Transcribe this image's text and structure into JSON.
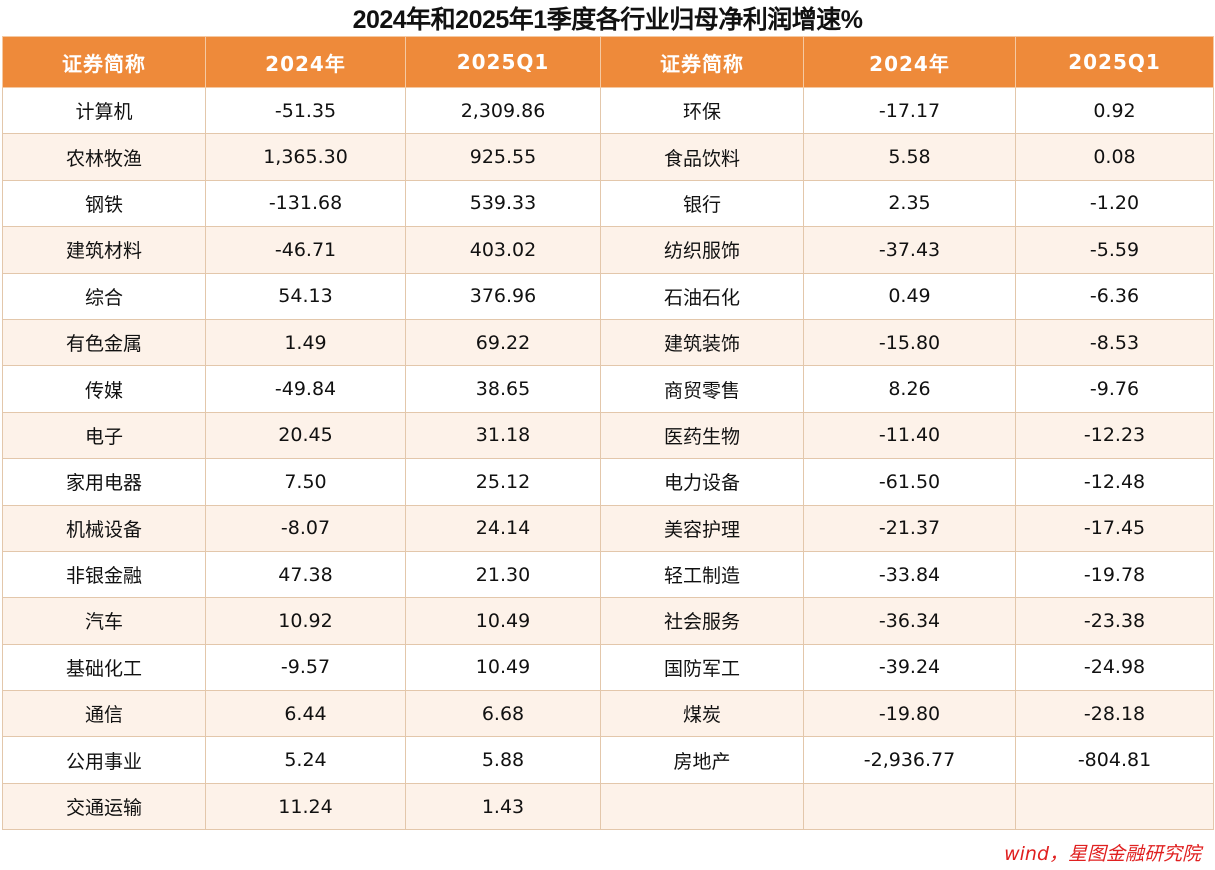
{
  "title": "2024年和2025年1季度各行业归母净利润增速%",
  "headers": [
    "证券简称",
    "2024年",
    "2025Q1",
    "证券简称",
    "2024年",
    "2025Q1"
  ],
  "rows": [
    [
      "计算机",
      "-51.35",
      "2,309.86",
      "环保",
      "-17.17",
      "0.92"
    ],
    [
      "农林牧渔",
      "1,365.30",
      "925.55",
      "食品饮料",
      "5.58",
      "0.08"
    ],
    [
      "钢铁",
      "-131.68",
      "539.33",
      "银行",
      "2.35",
      "-1.20"
    ],
    [
      "建筑材料",
      "-46.71",
      "403.02",
      "纺织服饰",
      "-37.43",
      "-5.59"
    ],
    [
      "综合",
      "54.13",
      "376.96",
      "石油石化",
      "0.49",
      "-6.36"
    ],
    [
      "有色金属",
      "1.49",
      "69.22",
      "建筑装饰",
      "-15.80",
      "-8.53"
    ],
    [
      "传媒",
      "-49.84",
      "38.65",
      "商贸零售",
      "8.26",
      "-9.76"
    ],
    [
      "电子",
      "20.45",
      "31.18",
      "医药生物",
      "-11.40",
      "-12.23"
    ],
    [
      "家用电器",
      "7.50",
      "25.12",
      "电力设备",
      "-61.50",
      "-12.48"
    ],
    [
      "机械设备",
      "-8.07",
      "24.14",
      "美容护理",
      "-21.37",
      "-17.45"
    ],
    [
      "非银金融",
      "47.38",
      "21.30",
      "轻工制造",
      "-33.84",
      "-19.78"
    ],
    [
      "汽车",
      "10.92",
      "10.49",
      "社会服务",
      "-36.34",
      "-23.38"
    ],
    [
      "基础化工",
      "-9.57",
      "10.49",
      "国防军工",
      "-39.24",
      "-24.98"
    ],
    [
      "通信",
      "6.44",
      "6.68",
      "煤炭",
      "-19.80",
      "-28.18"
    ],
    [
      "公用事业",
      "5.24",
      "5.88",
      "房地产",
      "-2,936.77",
      "-804.81"
    ],
    [
      "交通运输",
      "11.24",
      "1.43",
      "",
      "",
      ""
    ]
  ],
  "source": "wind，星图金融研究院",
  "colors": {
    "header_bg": "#ee8a3a",
    "stripe_bg": "#fdf2e9",
    "source_text": "#e02020"
  }
}
